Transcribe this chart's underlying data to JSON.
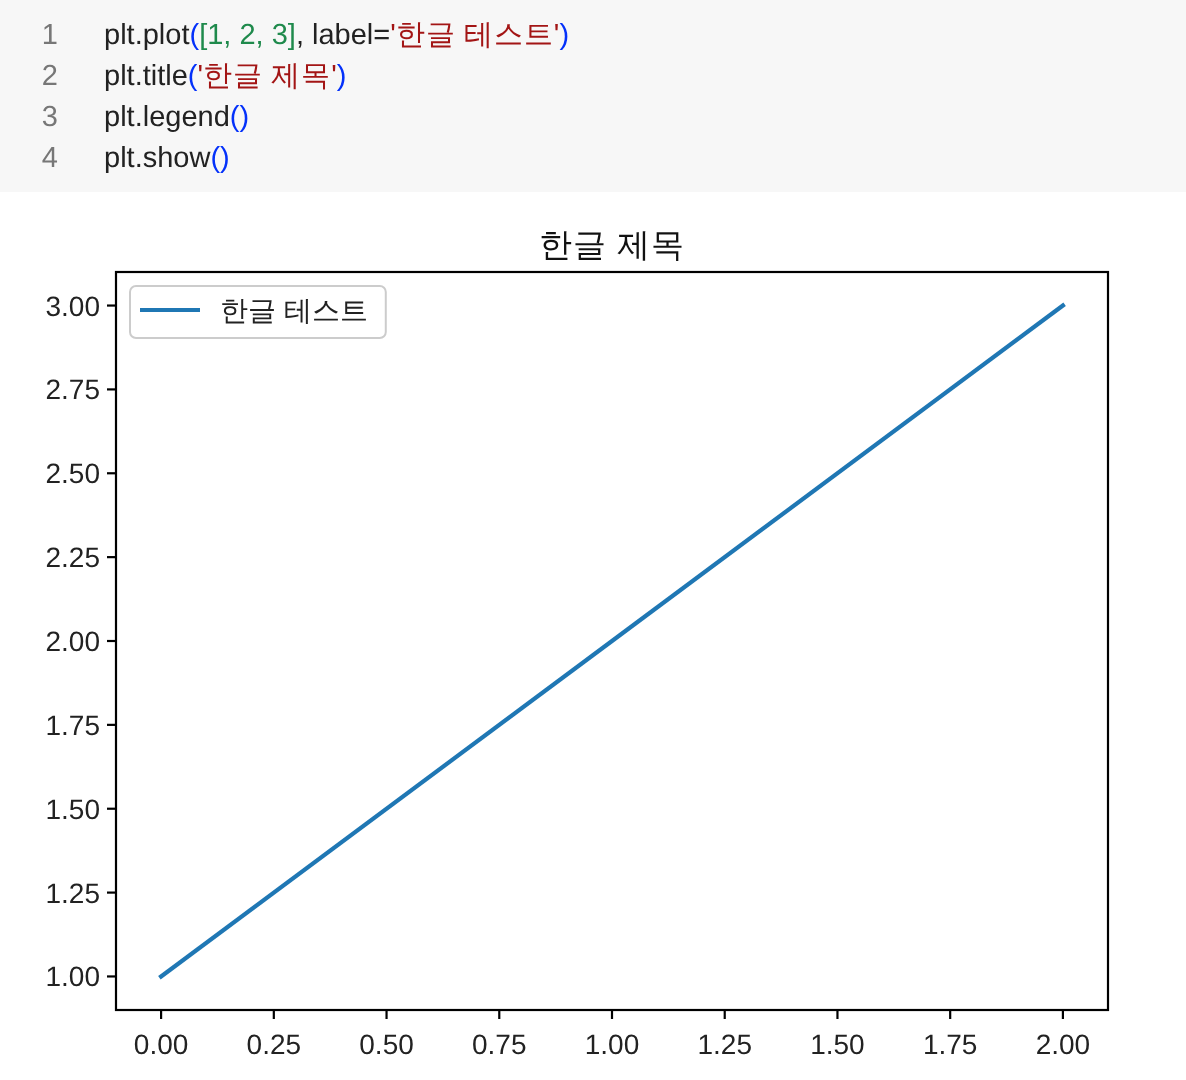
{
  "chart_data": {
    "type": "line",
    "title": "한글 제목",
    "annotations": [
      "1",
      "plt.plot([1, 2, 3], label='한글 테스트')",
      "2",
      "plt.title('한글 제목')",
      "3",
      "plt.legend()",
      "4",
      "plt.show()"
    ],
    "x": [
      0,
      1,
      2
    ],
    "series": [
      {
        "name": "한글 테스트",
        "color": "#1f77b4",
        "values": [
          1,
          2,
          3
        ]
      }
    ],
    "xlim": [
      -0.1,
      2.1
    ],
    "ylim": [
      0.9,
      3.1
    ],
    "xticks": [
      {
        "value": 0,
        "label": "0.00"
      },
      {
        "value": 0.25,
        "label": "0.25"
      },
      {
        "value": 0.5,
        "label": "0.50"
      },
      {
        "value": 0.75,
        "label": "0.75"
      },
      {
        "value": 1,
        "label": "1.00"
      },
      {
        "value": 1.25,
        "label": "1.25"
      },
      {
        "value": 1.5,
        "label": "1.50"
      },
      {
        "value": 1.75,
        "label": "1.75"
      },
      {
        "value": 2,
        "label": "2.00"
      }
    ],
    "yticks": [
      {
        "value": 1,
        "label": "1.00"
      },
      {
        "value": 1.25,
        "label": "1.25"
      },
      {
        "value": 1.5,
        "label": "1.50"
      },
      {
        "value": 1.75,
        "label": "1.75"
      },
      {
        "value": 2,
        "label": "2.00"
      },
      {
        "value": 2.25,
        "label": "2.25"
      },
      {
        "value": 2.5,
        "label": "2.50"
      },
      {
        "value": 2.75,
        "label": "2.75"
      },
      {
        "value": 3,
        "label": "3.00"
      }
    ],
    "legend": "top left",
    "line_style": "solid"
  }
}
